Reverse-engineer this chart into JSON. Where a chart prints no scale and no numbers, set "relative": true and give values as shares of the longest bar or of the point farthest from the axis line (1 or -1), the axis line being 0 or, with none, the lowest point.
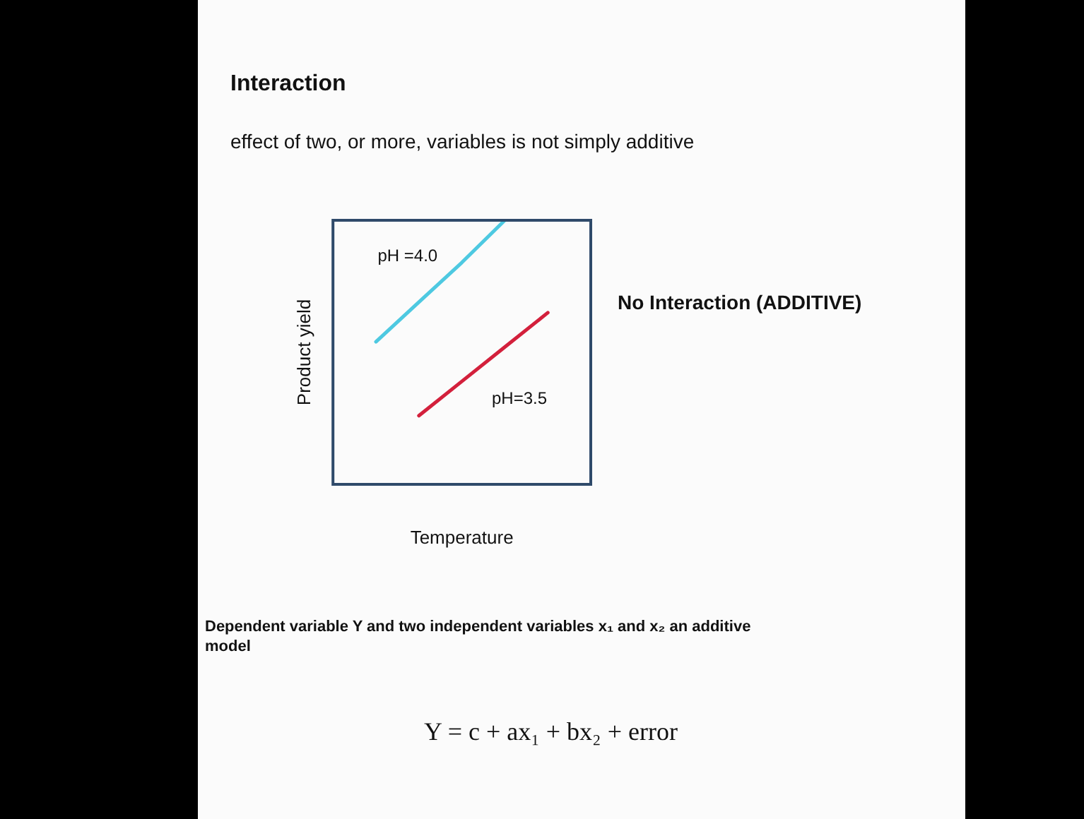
{
  "chart_data": {
    "type": "line",
    "title": "Interaction",
    "subtitle": "effect of two, or more, variables is not simply additive",
    "xlabel": "Temperature",
    "ylabel": "Product yield",
    "relative": true,
    "grid": false,
    "legend": false,
    "marker": "none",
    "line_style": "solid",
    "categories": [
      null,
      null,
      null,
      null,
      null,
      null,
      null
    ],
    "series": [
      {
        "name": "pH =4.0",
        "color": "#4ec9e1",
        "values": [
          null,
          0.54,
          0.69,
          0.84,
          1,
          null,
          null
        ]
      },
      {
        "name": "pH=3.5",
        "color": "#d3203c",
        "values": [
          null,
          null,
          0.26,
          0.39,
          0.52,
          0.65,
          null
        ]
      }
    ],
    "annotations": [
      "No Interaction (ADDITIVE)",
      "Dependent variable Y and two independent variables x₁ and x₂ an additive model",
      "Y = c + ax₁ + bx₂ + error"
    ]
  }
}
